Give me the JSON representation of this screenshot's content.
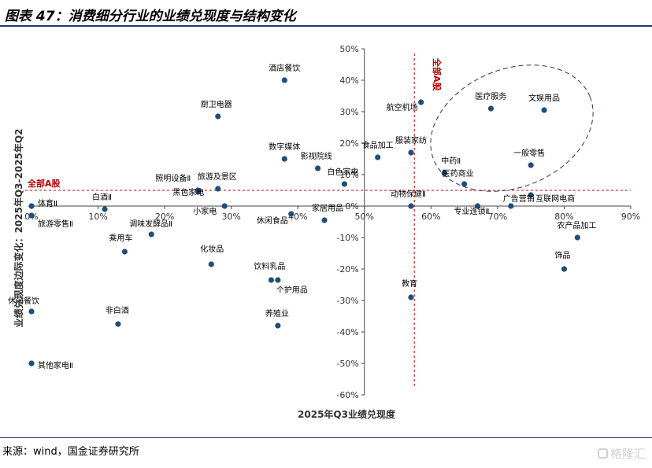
{
  "figure": {
    "title": "图表 47：消费细分行业的业绩兑现度与结构变化",
    "source": "来源：wind，国金证券研究所",
    "watermark": "格隆汇"
  },
  "colors": {
    "point": "#1f4e79",
    "reference": "#c00000",
    "ellipse": "#1f3864",
    "text": "#000000",
    "rule": "#1f3864"
  },
  "chart_data": {
    "type": "scatter",
    "xlabel": "2025年Q3业绩兑现度",
    "ylabel": "业绩兑现度边际变化：2025年Q3-2025年Q2",
    "xlim": [
      0,
      0.9
    ],
    "ylim": [
      -0.6,
      0.5
    ],
    "x_ticks": [
      "0%",
      "10%",
      "20%",
      "30%",
      "40%",
      "50%",
      "60%",
      "70%",
      "80%",
      "90%"
    ],
    "y_ticks": [
      "50%",
      "40%",
      "30%",
      "20%",
      "10%",
      "0%",
      "-10%",
      "-20%",
      "-30%",
      "-40%",
      "-50%",
      "-60%"
    ],
    "reference_lines": {
      "x": 0.575,
      "y": 0.05,
      "label": "全部A股"
    },
    "grid": false,
    "annotation": "dashed ellipse highlighting upper-right cluster",
    "points": [
      {
        "label": "酒店餐饮",
        "x": 0.38,
        "y": 0.4
      },
      {
        "label": "厨卫电器",
        "x": 0.28,
        "y": 0.285
      },
      {
        "label": "数字媒体",
        "x": 0.38,
        "y": 0.15
      },
      {
        "label": "影视院线",
        "x": 0.43,
        "y": 0.12
      },
      {
        "label": "航空机场",
        "x": 0.585,
        "y": 0.33
      },
      {
        "label": "医疗服务",
        "x": 0.69,
        "y": 0.31
      },
      {
        "label": "文娱用品",
        "x": 0.77,
        "y": 0.305
      },
      {
        "label": "食品加工",
        "x": 0.52,
        "y": 0.155
      },
      {
        "label": "服装家纺",
        "x": 0.57,
        "y": 0.17
      },
      {
        "label": "中药Ⅱ",
        "x": 0.62,
        "y": 0.105
      },
      {
        "label": "一般零售",
        "x": 0.75,
        "y": 0.13
      },
      {
        "label": "医药商业",
        "x": 0.65,
        "y": 0.07
      },
      {
        "label": "白色家电",
        "x": 0.47,
        "y": 0.07
      },
      {
        "label": "旅游及景区",
        "x": 0.28,
        "y": 0.055
      },
      {
        "label": "照明设备Ⅱ",
        "x": 0.25,
        "y": 0.05
      },
      {
        "label": "黑色家电",
        "x": 0.25,
        "y": 0.045
      },
      {
        "label": "动物保健Ⅱ",
        "x": 0.57,
        "y": 0.0
      },
      {
        "label": "专业连锁Ⅱ",
        "x": 0.67,
        "y": 0.0
      },
      {
        "label": "广告营销",
        "x": 0.72,
        "y": 0.0
      },
      {
        "label": "互联网电商",
        "x": 0.75,
        "y": 0.035
      },
      {
        "label": "体育Ⅱ",
        "x": 0.0,
        "y": 0.0
      },
      {
        "label": "白酒Ⅱ",
        "x": 0.11,
        "y": -0.01
      },
      {
        "label": "小家电",
        "x": 0.29,
        "y": 0.0
      },
      {
        "label": "休闲食品",
        "x": 0.39,
        "y": -0.025
      },
      {
        "label": "家居用品",
        "x": 0.44,
        "y": -0.045
      },
      {
        "label": "旅游零售Ⅱ",
        "x": 0.0,
        "y": -0.03
      },
      {
        "label": "调味发酵品Ⅱ",
        "x": 0.18,
        "y": -0.09
      },
      {
        "label": "乘用车",
        "x": 0.14,
        "y": -0.145
      },
      {
        "label": "化妆品",
        "x": 0.27,
        "y": -0.185
      },
      {
        "label": "饮料乳品",
        "x": 0.36,
        "y": -0.235
      },
      {
        "label": "个护用品",
        "x": 0.37,
        "y": -0.235
      },
      {
        "label": "农产品加工",
        "x": 0.82,
        "y": -0.1
      },
      {
        "label": "饰品",
        "x": 0.8,
        "y": -0.2
      },
      {
        "label": "教育",
        "x": 0.57,
        "y": -0.29
      },
      {
        "label": "非白酒",
        "x": 0.13,
        "y": -0.375
      },
      {
        "label": "养殖业",
        "x": 0.37,
        "y": -0.38
      },
      {
        "label": "其他家电Ⅱ",
        "x": 0.0,
        "y": -0.5
      },
      {
        "label": "休闲餐饮",
        "x": 0.0,
        "y": -0.335
      }
    ]
  }
}
